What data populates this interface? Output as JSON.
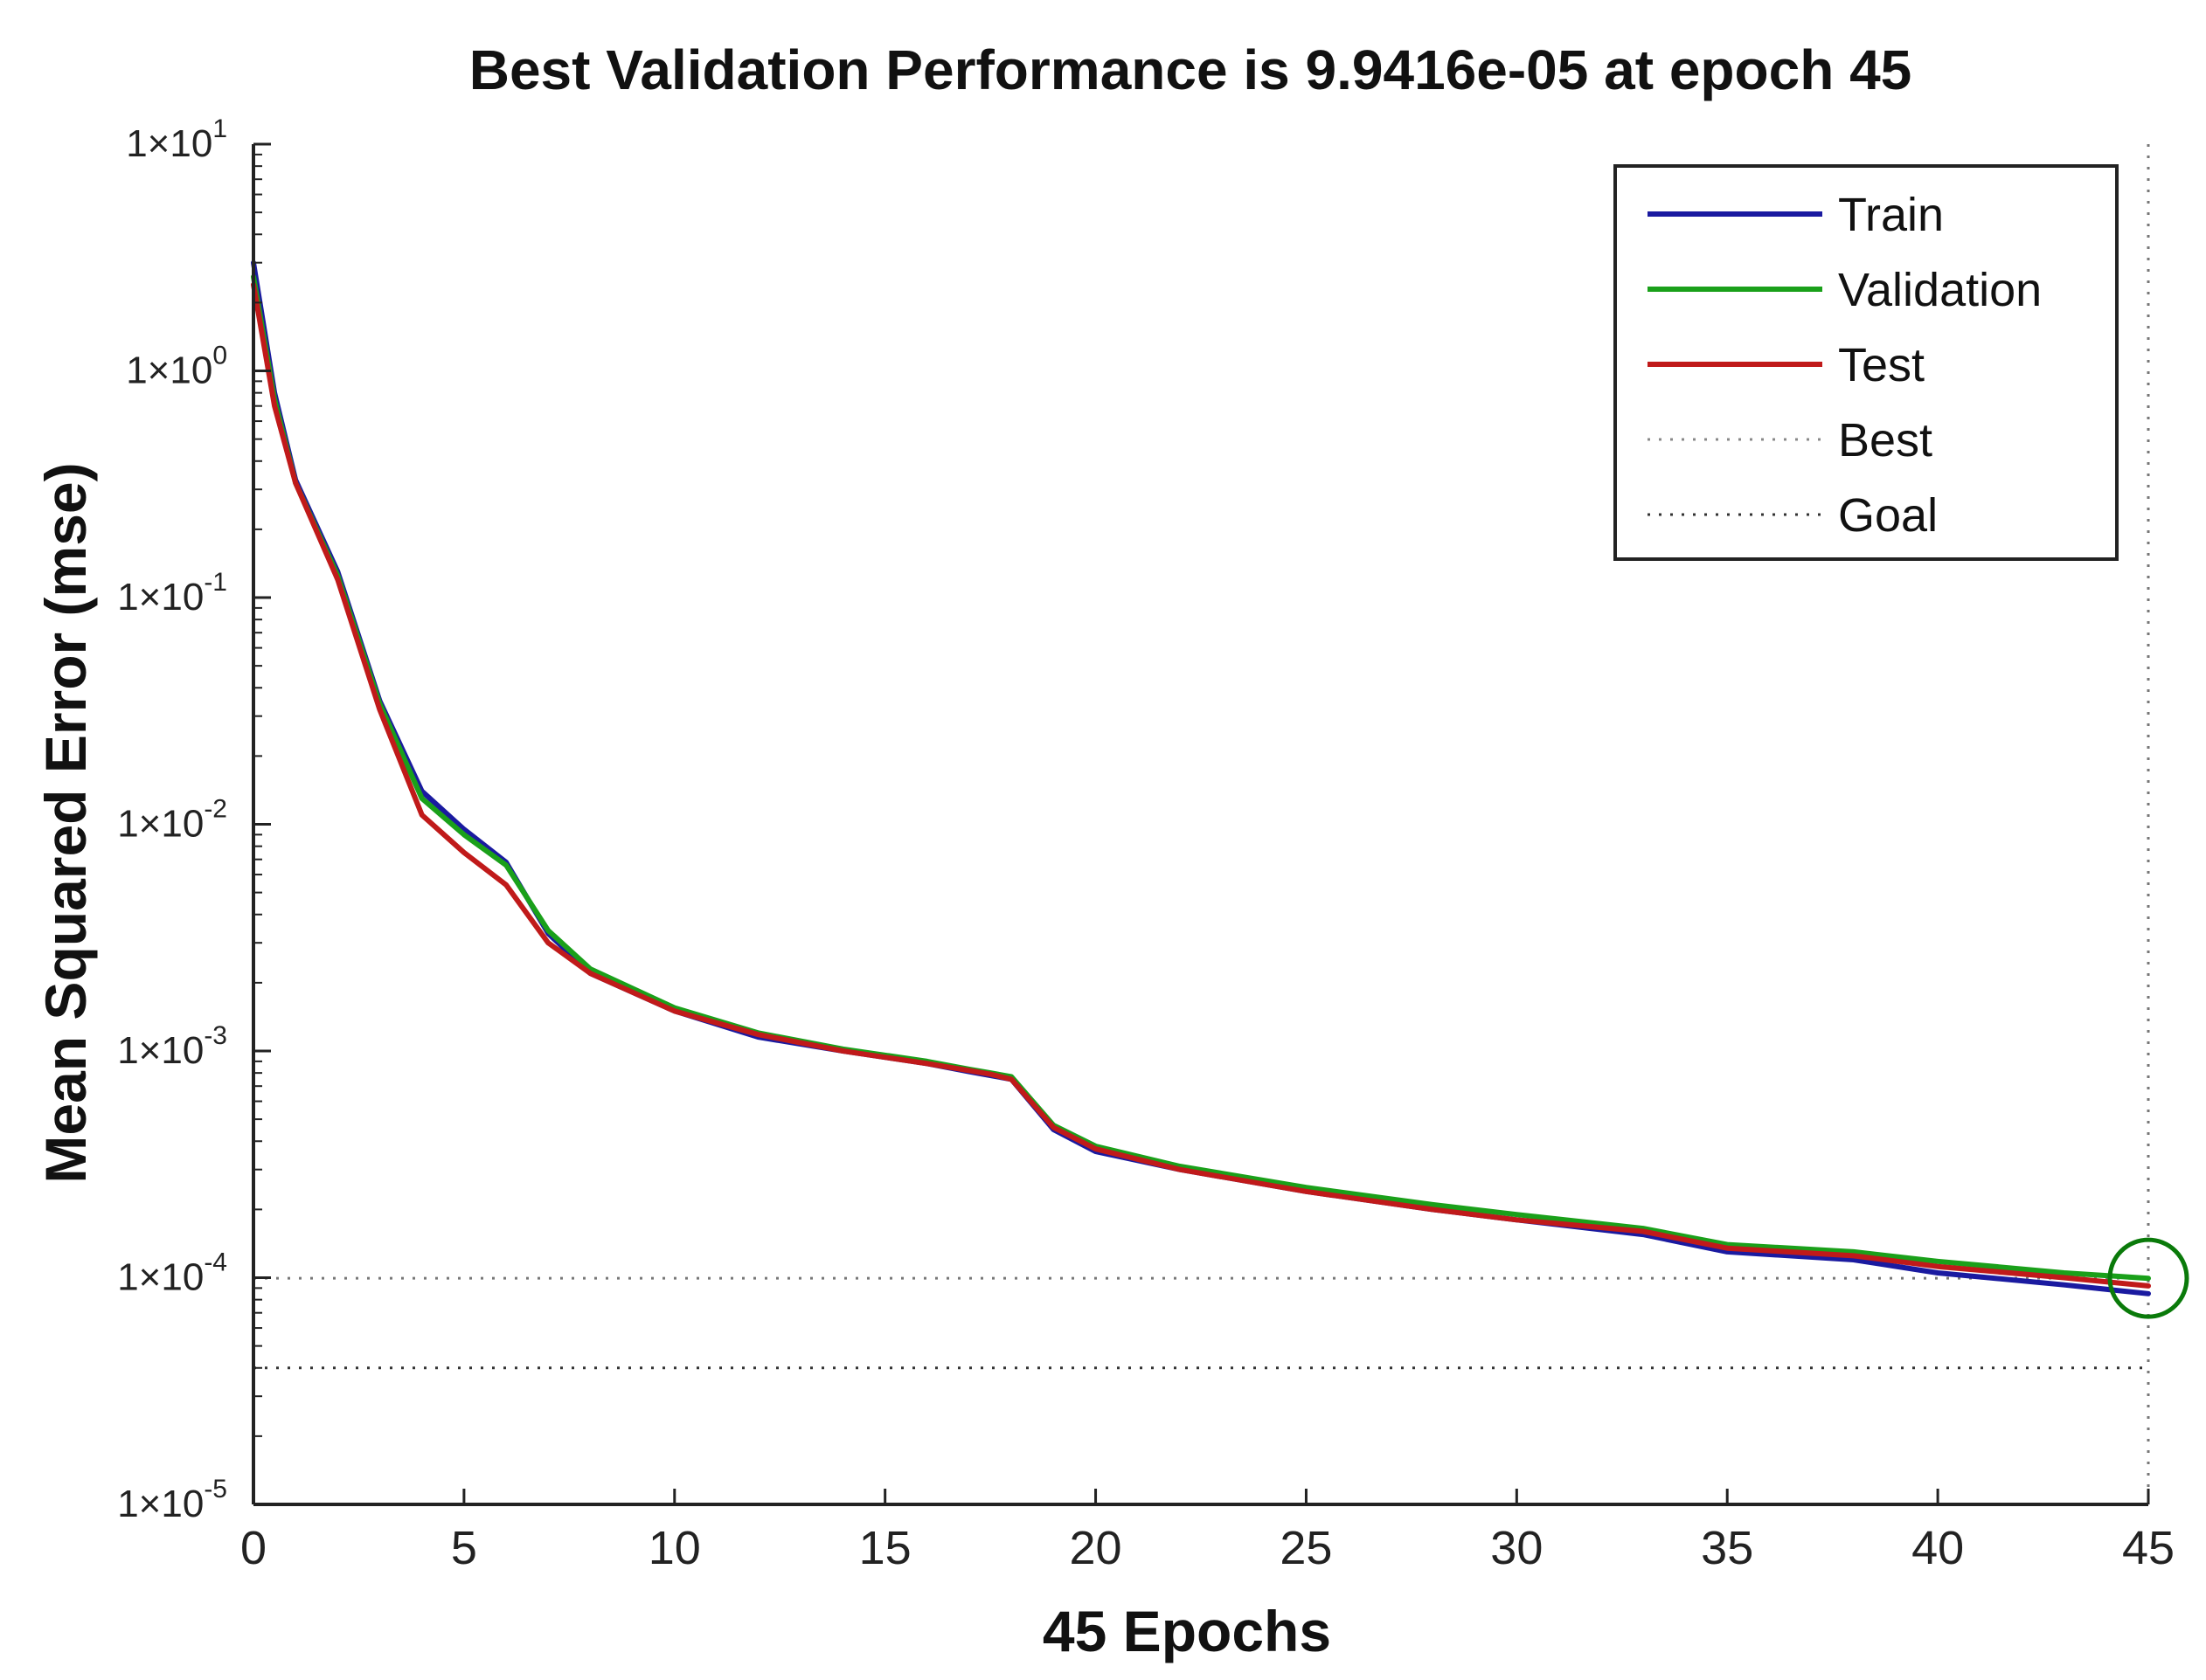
{
  "chart_data": {
    "type": "line",
    "title": "Best Validation Performance is 9.9416e-05 at epoch 45",
    "xlabel": "45 Epochs",
    "ylabel": "Mean Squared Error  (mse)",
    "xlim": [
      0,
      45
    ],
    "ylim": [
      1e-05,
      10
    ],
    "yscale": "log",
    "xticks": [
      "0",
      "5",
      "10",
      "15",
      "20",
      "25",
      "30",
      "35",
      "40",
      "45"
    ],
    "yticks": [
      {
        "base": "1×10",
        "exp": "1"
      },
      {
        "base": "1×10",
        "exp": "0"
      },
      {
        "base": "1×10",
        "exp": "-1"
      },
      {
        "base": "1×10",
        "exp": "-2"
      },
      {
        "base": "1×10",
        "exp": "-3"
      },
      {
        "base": "1×10",
        "exp": "-4"
      },
      {
        "base": "1×10",
        "exp": "-5"
      }
    ],
    "legend_position": "top-right",
    "series": [
      {
        "name": "Train",
        "color": "#1a1aa0",
        "style": "solid",
        "x": [
          0,
          0.5,
          1,
          2,
          3,
          4,
          5,
          6,
          7,
          8,
          10,
          12,
          14,
          16,
          17,
          17.5,
          18,
          19,
          20,
          22,
          25,
          28,
          30,
          33,
          35,
          38,
          40,
          43,
          45
        ],
        "y": [
          3,
          0.8,
          0.33,
          0.13,
          0.035,
          0.014,
          0.0095,
          0.0068,
          0.0033,
          0.0022,
          0.0015,
          0.00115,
          0.001,
          0.00088,
          0.00081,
          0.00078,
          0.00075,
          0.00045,
          0.00036,
          0.0003,
          0.00024,
          0.0002,
          0.00018,
          0.000155,
          0.00013,
          0.00012,
          0.000105,
          9.3e-05,
          8.5e-05
        ]
      },
      {
        "name": "Validation",
        "color": "#1aa01a",
        "style": "solid",
        "x": [
          0,
          0.5,
          1,
          2,
          3,
          4,
          5,
          6,
          7,
          8,
          10,
          12,
          14,
          16,
          17,
          17.5,
          18,
          19,
          20,
          22,
          25,
          28,
          30,
          33,
          35,
          38,
          40,
          43,
          45
        ],
        "y": [
          2.6,
          0.75,
          0.32,
          0.125,
          0.034,
          0.013,
          0.009,
          0.0066,
          0.0034,
          0.0023,
          0.00155,
          0.0012,
          0.00102,
          0.0009,
          0.00083,
          0.0008,
          0.00077,
          0.00047,
          0.00038,
          0.00031,
          0.00025,
          0.00021,
          0.00019,
          0.000165,
          0.00014,
          0.00013,
          0.000118,
          0.000105,
          9.9416e-05
        ]
      },
      {
        "name": "Test",
        "color": "#c01a1a",
        "style": "solid",
        "x": [
          0,
          0.5,
          1,
          2,
          3,
          4,
          5,
          6,
          7,
          8,
          10,
          12,
          14,
          16,
          17,
          17.5,
          18,
          19,
          20,
          22,
          25,
          28,
          30,
          33,
          35,
          38,
          40,
          43,
          45
        ],
        "y": [
          2.4,
          0.7,
          0.32,
          0.12,
          0.032,
          0.011,
          0.0075,
          0.0054,
          0.003,
          0.0022,
          0.0015,
          0.00118,
          0.001,
          0.00088,
          0.00082,
          0.00079,
          0.00075,
          0.00046,
          0.00037,
          0.0003,
          0.00024,
          0.0002,
          0.00018,
          0.00016,
          0.000135,
          0.000125,
          0.000112,
          0.0001,
          9.2e-05
        ]
      }
    ],
    "reference_lines": [
      {
        "name": "Best",
        "orientation": "vertical",
        "x": 45,
        "style": "dotted",
        "color": "#777777"
      },
      {
        "name": "Best",
        "orientation": "horizontal",
        "y": 9.9416e-05,
        "style": "dotted",
        "color": "#777777"
      },
      {
        "name": "Goal",
        "orientation": "horizontal",
        "y": 4e-05,
        "style": "dotted",
        "color": "#333333"
      }
    ],
    "best_marker": {
      "x": 45,
      "y": 9.9416e-05,
      "color": "#0a7a0a"
    },
    "legend": [
      {
        "label": "Train",
        "color": "#1a1aa0",
        "style": "solid"
      },
      {
        "label": "Validation",
        "color": "#1aa01a",
        "style": "solid"
      },
      {
        "label": "Test",
        "color": "#c01a1a",
        "style": "solid"
      },
      {
        "label": "Best",
        "color": "#888888",
        "style": "dotted"
      },
      {
        "label": "Goal",
        "color": "#333333",
        "style": "dotted"
      }
    ]
  }
}
